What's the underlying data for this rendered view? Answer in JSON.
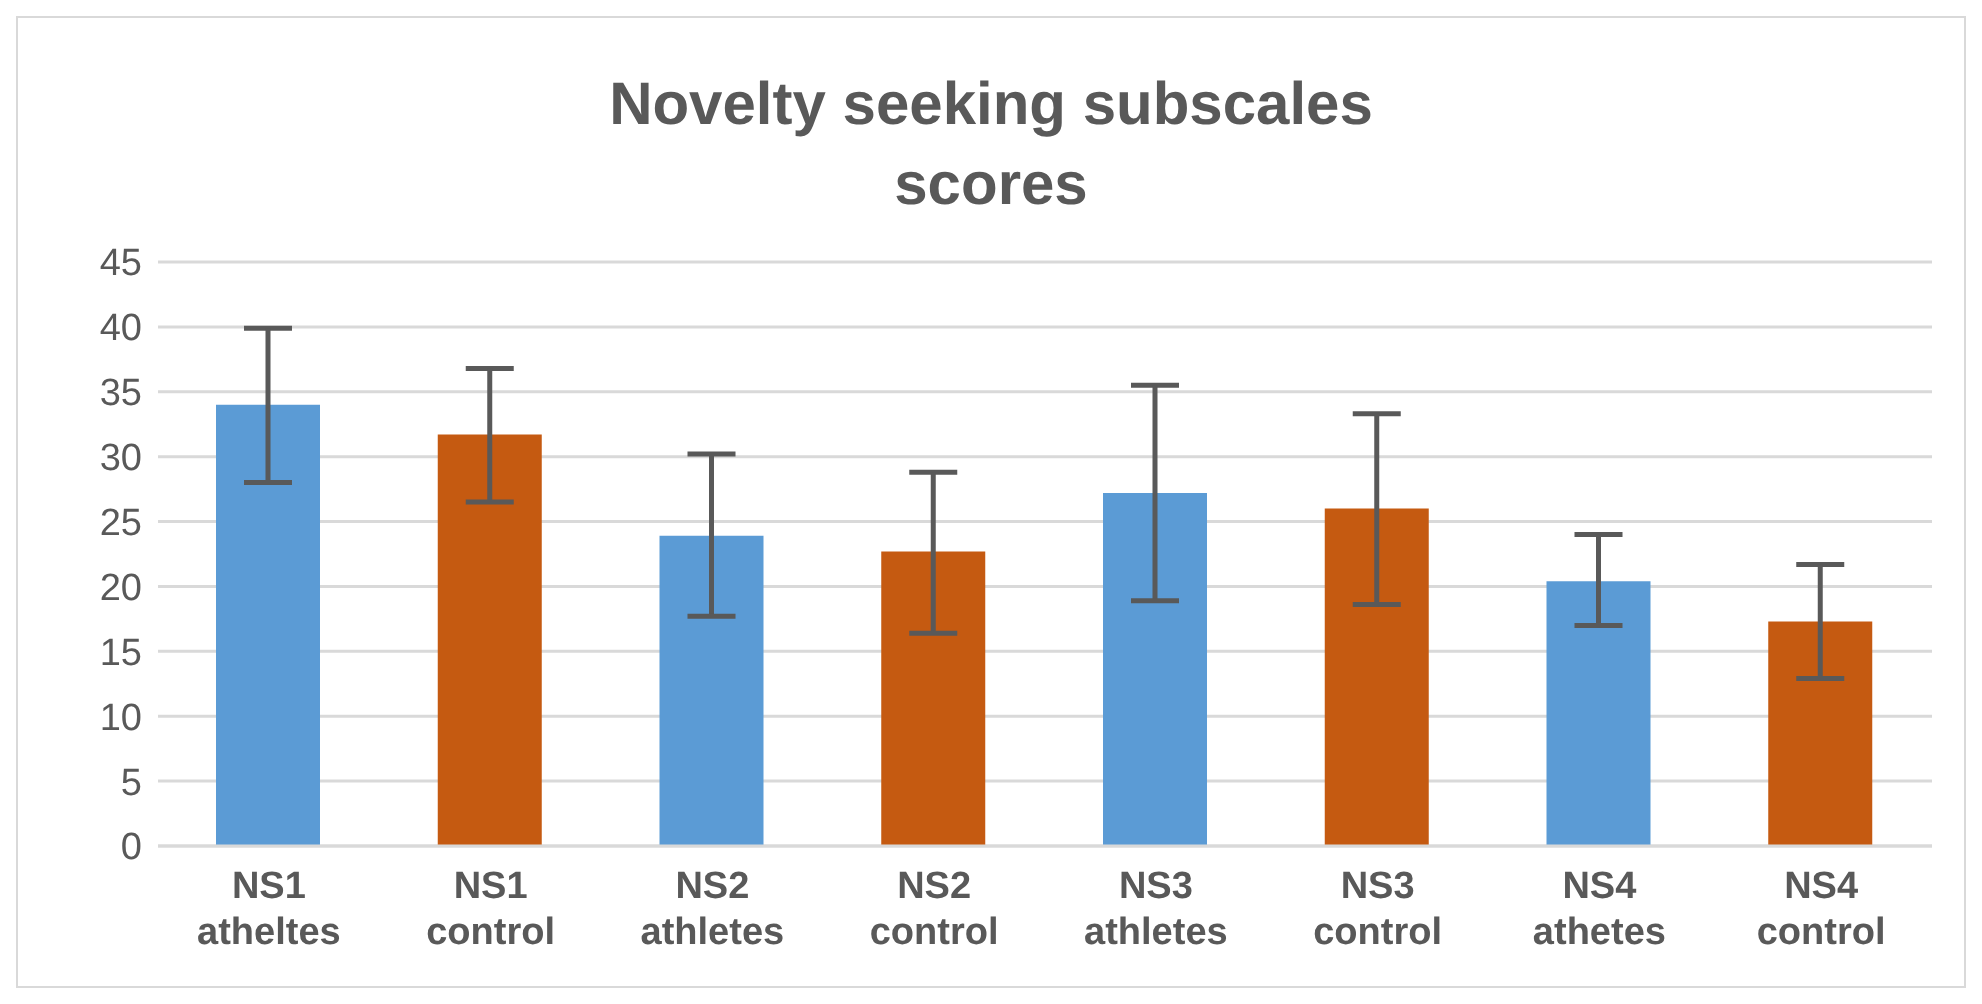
{
  "chart_data": {
    "type": "bar",
    "title": "Novelty seeking subscales scores",
    "categories": [
      "NS1 atheltes",
      "NS1 control",
      "NS2 athletes",
      "NS2 control",
      "NS3 athletes",
      "NS3 control",
      "NS4 athetes",
      "NS4 control"
    ],
    "values": [
      34,
      31.7,
      23.9,
      22.7,
      27.2,
      26,
      20.4,
      17.3
    ],
    "colors": [
      "#5b9bd5",
      "#c55a11",
      "#5b9bd5",
      "#c55a11",
      "#5b9bd5",
      "#c55a11",
      "#5b9bd5",
      "#c55a11"
    ],
    "errors": [
      [
        28,
        39.9
      ],
      [
        26.5,
        36.8
      ],
      [
        17.7,
        30.2
      ],
      [
        16.4,
        28.8
      ],
      [
        18.9,
        35.5
      ],
      [
        18.6,
        33.3
      ],
      [
        17,
        24
      ],
      [
        12.9,
        21.7
      ]
    ],
    "ylim": [
      0,
      45
    ],
    "yticks": [
      0,
      5,
      10,
      15,
      20,
      25,
      30,
      35,
      40,
      45
    ],
    "grid": "y"
  }
}
